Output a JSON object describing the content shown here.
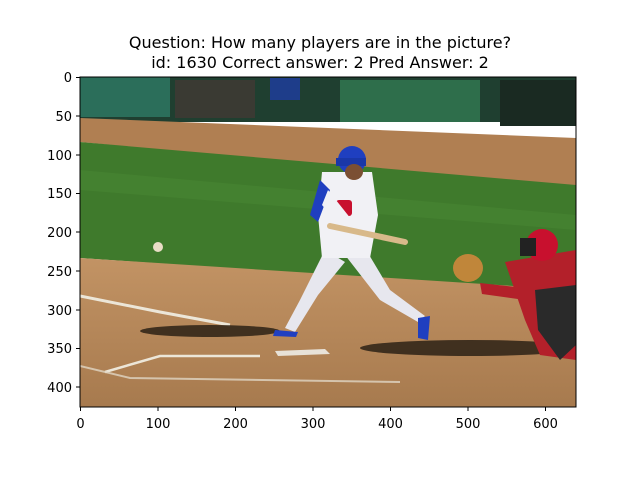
{
  "figure": {
    "title_line1": "Question: How many players are in the picture?",
    "title_line2": "id: 1630 Correct answer: 2 Pred Answer: 2"
  },
  "image": {
    "description_icon": "baseball-batter-photo",
    "scene_colors": {
      "grass": "#3f7a2c",
      "dirt": "#b48556",
      "wall": "#1f4a36",
      "batter_helmet": "#1f3fc0",
      "catcher_jersey": "#b3202a"
    }
  },
  "axes": {
    "x_ticks": [
      "0",
      "100",
      "200",
      "300",
      "400",
      "500",
      "600"
    ],
    "y_ticks": [
      "0",
      "50",
      "100",
      "150",
      "200",
      "250",
      "300",
      "350",
      "400"
    ],
    "x_range": [
      0,
      640
    ],
    "y_range": [
      425,
      0
    ]
  }
}
